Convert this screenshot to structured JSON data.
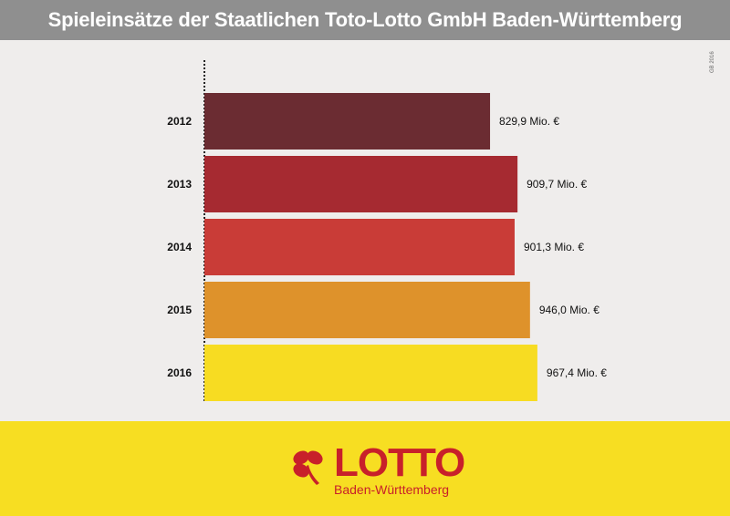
{
  "header": {
    "title": "Spieleinsätze der Staatlichen Toto-Lotto GmbH Baden-Württemberg"
  },
  "side_note": "GB 2016",
  "logo": {
    "word": "LOTTO",
    "sub": "Baden-Württemberg"
  },
  "colors": {
    "header_bg": "#8f8f8f",
    "footer_bg": "#f7de22",
    "brand_red": "#c8202a"
  },
  "chart_data": {
    "type": "bar",
    "orientation": "horizontal",
    "title": "Spieleinsätze der Staatlichen Toto-Lotto GmbH Baden-Württemberg",
    "categories": [
      "2012",
      "2013",
      "2014",
      "2015",
      "2016"
    ],
    "values": [
      829.9,
      909.7,
      901.3,
      946.0,
      967.4
    ],
    "value_labels": [
      "829,9 Mio. €",
      "909,7 Mio. €",
      "901,3 Mio. €",
      "946,0 Mio. €",
      "967,4 Mio. €"
    ],
    "bar_colors": [
      "#6b2c32",
      "#a62a31",
      "#c93c37",
      "#de922b",
      "#f7dc22"
    ],
    "xlim": [
      0,
      1000
    ],
    "grid": false,
    "legend": "none"
  }
}
